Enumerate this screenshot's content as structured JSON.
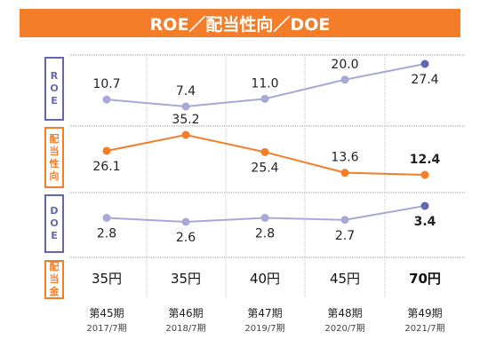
{
  "title": "ROE／配当性向／DOE",
  "colors": {
    "orange": "#f47d2a",
    "purple_line": "#a8a8d8",
    "purple_dark": "#6565b5",
    "grid": "#a0a0a0"
  },
  "row_labels": [
    {
      "text": "ROE",
      "color": "purple"
    },
    {
      "text": "配当性向",
      "color": "orange"
    },
    {
      "text": "DOE",
      "color": "purple"
    },
    {
      "text": "配当金",
      "color": "orange"
    }
  ],
  "periods": [
    {
      "term": "第45期",
      "date": "2017/7期"
    },
    {
      "term": "第46期",
      "date": "2018/7期"
    },
    {
      "term": "第47期",
      "date": "2019/7期"
    },
    {
      "term": "第48期",
      "date": "2020/7期"
    },
    {
      "term": "第49期",
      "date": "2021/7期"
    }
  ],
  "chart_data": {
    "type": "line",
    "categories": [
      "第45期 2017/7期",
      "第46期 2018/7期",
      "第47期 2019/7期",
      "第48期 2020/7期",
      "第49期 2021/7期"
    ],
    "series": [
      {
        "name": "ROE",
        "values": [
          10.7,
          7.4,
          11.0,
          20.0,
          27.4
        ],
        "labels": [
          "10.7",
          "7.4",
          "11.0",
          "20.0",
          "27.4"
        ]
      },
      {
        "name": "配当性向",
        "values": [
          26.1,
          35.2,
          25.4,
          13.6,
          12.4
        ],
        "labels": [
          "26.1",
          "35.2",
          "25.4",
          "13.6",
          "12.4"
        ]
      },
      {
        "name": "DOE",
        "values": [
          2.8,
          2.6,
          2.8,
          2.7,
          3.4
        ],
        "labels": [
          "2.8",
          "2.6",
          "2.8",
          "2.7",
          "3.4"
        ]
      },
      {
        "name": "配当金",
        "values": [
          35,
          35,
          40,
          45,
          70
        ],
        "labels": [
          "35円",
          "35円",
          "40円",
          "45円",
          "70円"
        ]
      }
    ],
    "ylim": {
      "ROE": [
        0,
        32
      ],
      "配当性向": [
        10,
        40
      ],
      "DOE": [
        1.7,
        3.7
      ]
    },
    "highlight_last": true,
    "grid": true
  }
}
